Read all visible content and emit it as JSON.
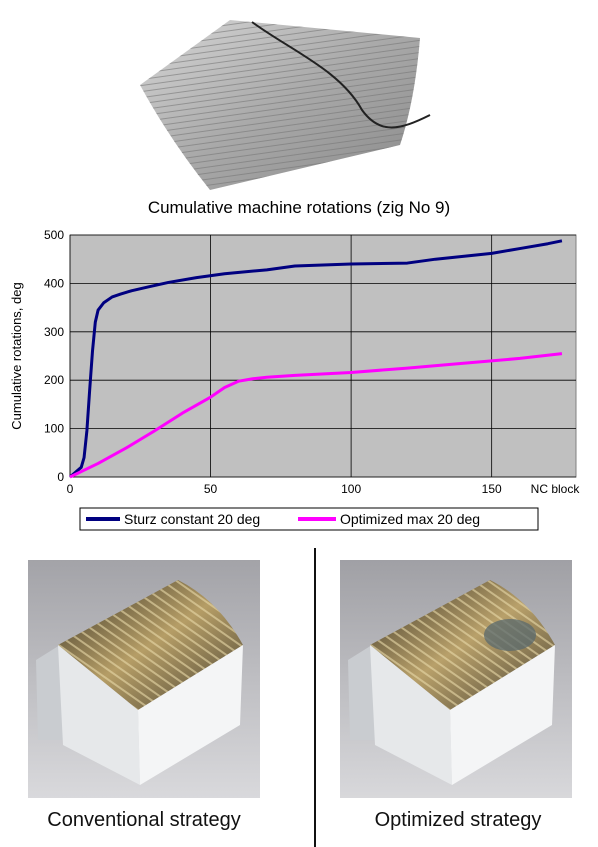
{
  "chart_data": {
    "type": "line",
    "title": "Cumulative machine rotations (zig No 9)",
    "xlabel": "NC block",
    "ylabel": "Cumulative rotations, deg",
    "xlim": [
      0,
      180
    ],
    "ylim": [
      0,
      500
    ],
    "x_ticks": [
      0,
      50,
      100,
      150
    ],
    "y_ticks": [
      0,
      100,
      200,
      300,
      400,
      500
    ],
    "grid": true,
    "legend_position": "bottom",
    "series": [
      {
        "name": "Sturz constant 20 deg",
        "color": "#000080",
        "x": [
          0,
          2,
          4,
          5,
          6,
          7,
          8,
          9,
          10,
          12,
          15,
          18,
          22,
          28,
          35,
          45,
          55,
          70,
          80,
          100,
          120,
          130,
          150,
          160,
          170,
          175
        ],
        "y": [
          0,
          10,
          20,
          40,
          95,
          180,
          260,
          320,
          345,
          360,
          372,
          378,
          385,
          393,
          402,
          412,
          420,
          428,
          436,
          440,
          442,
          450,
          462,
          472,
          482,
          488
        ]
      },
      {
        "name": "Optimized max 20 deg",
        "color": "#ff00ff",
        "x": [
          0,
          10,
          20,
          30,
          40,
          50,
          55,
          60,
          65,
          70,
          80,
          100,
          120,
          140,
          160,
          175
        ],
        "y": [
          0,
          28,
          60,
          95,
          132,
          165,
          185,
          198,
          203,
          206,
          210,
          216,
          225,
          235,
          245,
          255
        ]
      }
    ]
  },
  "captions": {
    "left": "Conventional strategy",
    "right": "Optimized strategy"
  }
}
